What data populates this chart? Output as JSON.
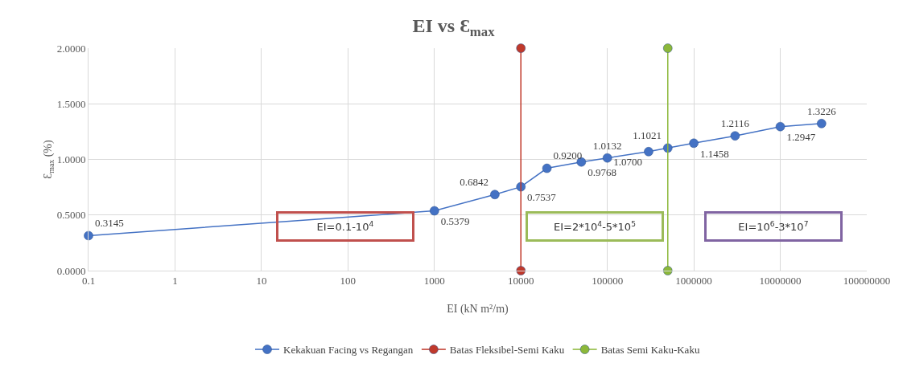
{
  "chart_data": {
    "type": "line",
    "title": "EI vs Ɛ$_{max}$",
    "xlabel": "EI (kN m²/m)",
    "ylabel": "Ɛ$_{max}$ (%)",
    "log": "x",
    "grid": true,
    "legend": "bottom",
    "marker": "circle",
    "line_style": "solid",
    "xlim": [
      0.1,
      100000000
    ],
    "xticks": [
      0.1,
      1,
      10,
      100,
      1000,
      10000,
      100000,
      1000000,
      10000000,
      100000000
    ],
    "ylim": [
      0,
      2
    ],
    "yticks": [
      {
        "value": 0,
        "label": "0.0000"
      },
      {
        "value": 0.5,
        "label": "0.5000"
      },
      {
        "value": 1,
        "label": "1.0000"
      },
      {
        "value": 1.5,
        "label": "1.5000"
      },
      {
        "value": 2,
        "label": "2.0000"
      }
    ],
    "series": [
      {
        "name": "Kekakuan Facing vs Regangan",
        "color": "#4472c4",
        "x": [
          0.1,
          1000,
          5000,
          10000,
          20000,
          50000,
          100000,
          300000,
          500000,
          1000000,
          3000000,
          10000000,
          30000000
        ],
        "values": [
          0.3145,
          0.5379,
          0.6842,
          0.7537,
          0.92,
          0.9768,
          1.0132,
          1.07,
          1.1021,
          1.1458,
          1.2116,
          1.2947,
          1.3226
        ],
        "value_labels": [
          "0.3145",
          "0.5379",
          "0.6842",
          "0.7537",
          "0.9200",
          "0.9768",
          "1.0132",
          "1.0700",
          "1.1021",
          "1.1458",
          "1.2116",
          "1.2947",
          "1.3226"
        ]
      },
      {
        "name": "Batas Fleksibel-Semi Kaku",
        "color": "#c0392b",
        "x": [
          10000,
          10000
        ],
        "values": [
          0,
          2
        ]
      },
      {
        "name": "Batas Semi Kaku-Kaku",
        "color": "#8cb83a",
        "x": [
          500000,
          500000
        ],
        "values": [
          0,
          2
        ]
      }
    ],
    "annotations": [
      "EI=0.1-10$^{4}$",
      "EI=2*10$^{4}$-5*10$^{5}$",
      "EI=10$^{6}$-3*10$^{7}$"
    ]
  }
}
